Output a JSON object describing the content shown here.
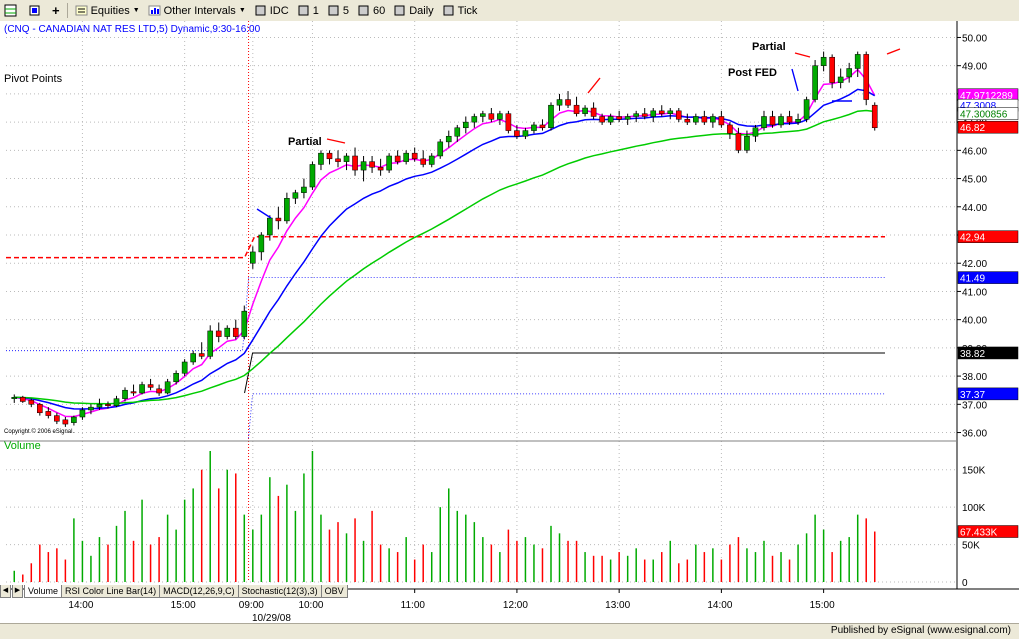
{
  "toolbar": {
    "items": [
      {
        "label": "Equities",
        "dropdown": true,
        "icon": "equities-icon"
      },
      {
        "label": "Other Intervals",
        "dropdown": true,
        "icon": "intervals-icon"
      },
      {
        "label": "IDC",
        "dropdown": false,
        "icon": "idc-icon"
      },
      {
        "label": "1",
        "dropdown": false
      },
      {
        "label": "5",
        "dropdown": false
      },
      {
        "label": "60",
        "dropdown": false
      },
      {
        "label": "Daily",
        "dropdown": false
      },
      {
        "label": "Tick",
        "dropdown": false
      }
    ]
  },
  "chart_header": "(CNQ - CANADIAN NAT RES LTD,5) Dynamic,9:30-16:00",
  "study_label": "Pivot Points",
  "copyright": "Copyright © 2006 eSignal.",
  "volume_label": "Volume",
  "tabs": [
    "Volume",
    "RSI Color Line Bar(14)",
    "MACD(12,26,9,C)",
    "Stochastic(12(3),3)",
    "OBV"
  ],
  "date_label": "10/29/08",
  "footer": "Published by eSignal (www.esignal.com)",
  "annotations": [
    {
      "text": "Partial",
      "near": "10:00",
      "color": "#000000"
    },
    {
      "text": "Partial",
      "near": "15:00",
      "color": "#000000"
    },
    {
      "text": "Post FED",
      "near": "14:30",
      "color": "#000000"
    }
  ],
  "price_tags": [
    {
      "label": "47.9712289",
      "bg": "#ff00ff",
      "fg": "#ffffff",
      "value": 47.97
    },
    {
      "label": "47.3008",
      "bg": "#ffffff",
      "fg": "#0000ff",
      "value": 47.6
    },
    {
      "label": "47.300856",
      "bg": "#ffffff",
      "fg": "#008000",
      "value": 47.3
    },
    {
      "label": "46.82",
      "bg": "#ff0000",
      "fg": "#ffffff",
      "value": 46.82
    },
    {
      "label": "42.94",
      "bg": "#ff0000",
      "fg": "#ffffff",
      "value": 42.94
    },
    {
      "label": "41.49",
      "bg": "#0000ff",
      "fg": "#ffffff",
      "value": 41.49
    },
    {
      "label": "38.82",
      "bg": "#000000",
      "fg": "#ffffff",
      "value": 38.82
    },
    {
      "label": "37.37",
      "bg": "#0000ff",
      "fg": "#ffffff",
      "value": 37.37
    },
    {
      "label": "67.433K",
      "bg": "#ff0000",
      "fg": "#ffffff",
      "value": 67433
    }
  ],
  "colors": {
    "up": "#00aa00",
    "down": "#ff0000",
    "ma_fast": "#ff00ff",
    "ma_mid": "#0000ff",
    "ma_slow": "#00cc00",
    "pivot_r1": "#ff0000",
    "pivot_s": "#0000ff",
    "pivot_p": "#000000",
    "volume_label": "#00aa00",
    "header": "#0000ff"
  },
  "chart_data": {
    "type": "candlestick",
    "price_axis": {
      "ticks": [
        "50.00",
        "49.00",
        "48.00",
        "47.00",
        "46.00",
        "45.00",
        "44.00",
        "43.00",
        "42.00",
        "41.00",
        "40.00",
        "39.00",
        "38.00",
        "37.00",
        "36.00"
      ],
      "min": 35.7,
      "max": 50.3
    },
    "volume_axis": {
      "ticks": [
        "150K",
        "100K",
        "50K",
        "0"
      ],
      "max": 175000
    },
    "time_axis": [
      "14:00",
      "15:00",
      "09:00",
      "10:00",
      "11:00",
      "12:00",
      "13:00",
      "14:00",
      "15:00"
    ],
    "candles": [
      {
        "o": 37.2,
        "h": 37.35,
        "l": 37.05,
        "c": 37.25,
        "v": 15000
      },
      {
        "o": 37.25,
        "h": 37.3,
        "l": 37.05,
        "c": 37.1,
        "v": 10000
      },
      {
        "o": 37.15,
        "h": 37.2,
        "l": 36.9,
        "c": 37.0,
        "v": 25000
      },
      {
        "o": 37.0,
        "h": 37.05,
        "l": 36.6,
        "c": 36.7,
        "v": 50000
      },
      {
        "o": 36.75,
        "h": 36.9,
        "l": 36.5,
        "c": 36.6,
        "v": 40000
      },
      {
        "o": 36.6,
        "h": 36.7,
        "l": 36.3,
        "c": 36.4,
        "v": 45000
      },
      {
        "o": 36.45,
        "h": 36.55,
        "l": 36.2,
        "c": 36.3,
        "v": 30000
      },
      {
        "o": 36.35,
        "h": 36.6,
        "l": 36.25,
        "c": 36.55,
        "v": 85000
      },
      {
        "o": 36.55,
        "h": 36.9,
        "l": 36.45,
        "c": 36.8,
        "v": 55000
      },
      {
        "o": 36.8,
        "h": 37.0,
        "l": 36.65,
        "c": 36.9,
        "v": 35000
      },
      {
        "o": 36.9,
        "h": 37.2,
        "l": 36.8,
        "c": 37.0,
        "v": 60000
      },
      {
        "o": 37.0,
        "h": 37.1,
        "l": 36.85,
        "c": 36.95,
        "v": 50000
      },
      {
        "o": 36.95,
        "h": 37.3,
        "l": 36.9,
        "c": 37.2,
        "v": 75000
      },
      {
        "o": 37.2,
        "h": 37.6,
        "l": 37.1,
        "c": 37.5,
        "v": 95000
      },
      {
        "o": 37.45,
        "h": 37.7,
        "l": 37.3,
        "c": 37.4,
        "v": 55000
      },
      {
        "o": 37.4,
        "h": 37.8,
        "l": 37.35,
        "c": 37.7,
        "v": 110000
      },
      {
        "o": 37.7,
        "h": 37.9,
        "l": 37.5,
        "c": 37.6,
        "v": 50000
      },
      {
        "o": 37.55,
        "h": 37.7,
        "l": 37.3,
        "c": 37.4,
        "v": 60000
      },
      {
        "o": 37.4,
        "h": 37.9,
        "l": 37.35,
        "c": 37.8,
        "v": 90000
      },
      {
        "o": 37.8,
        "h": 38.2,
        "l": 37.7,
        "c": 38.1,
        "v": 70000
      },
      {
        "o": 38.1,
        "h": 38.6,
        "l": 38.0,
        "c": 38.5,
        "v": 110000
      },
      {
        "o": 38.5,
        "h": 38.9,
        "l": 38.4,
        "c": 38.8,
        "v": 125000
      },
      {
        "o": 38.8,
        "h": 39.2,
        "l": 38.6,
        "c": 38.7,
        "v": 150000
      },
      {
        "o": 38.7,
        "h": 39.8,
        "l": 38.6,
        "c": 39.6,
        "v": 175000
      },
      {
        "o": 39.6,
        "h": 39.9,
        "l": 39.2,
        "c": 39.4,
        "v": 125000
      },
      {
        "o": 39.4,
        "h": 39.8,
        "l": 39.3,
        "c": 39.7,
        "v": 150000
      },
      {
        "o": 39.7,
        "h": 40.0,
        "l": 39.3,
        "c": 39.4,
        "v": 145000
      },
      {
        "o": 39.4,
        "h": 40.5,
        "l": 39.3,
        "c": 40.3,
        "v": 90000
      },
      {
        "o": 42.0,
        "h": 42.6,
        "l": 41.8,
        "c": 42.4,
        "v": 70000
      },
      {
        "o": 42.4,
        "h": 43.1,
        "l": 42.1,
        "c": 43.0,
        "v": 90000
      },
      {
        "o": 43.0,
        "h": 43.7,
        "l": 42.8,
        "c": 43.6,
        "v": 140000
      },
      {
        "o": 43.6,
        "h": 44.0,
        "l": 43.2,
        "c": 43.5,
        "v": 115000
      },
      {
        "o": 43.5,
        "h": 44.5,
        "l": 43.4,
        "c": 44.3,
        "v": 130000
      },
      {
        "o": 44.3,
        "h": 44.6,
        "l": 44.1,
        "c": 44.5,
        "v": 95000
      },
      {
        "o": 44.5,
        "h": 45.0,
        "l": 44.3,
        "c": 44.7,
        "v": 145000
      },
      {
        "o": 44.7,
        "h": 45.6,
        "l": 44.6,
        "c": 45.5,
        "v": 175000
      },
      {
        "o": 45.5,
        "h": 46.0,
        "l": 45.3,
        "c": 45.9,
        "v": 90000
      },
      {
        "o": 45.9,
        "h": 46.0,
        "l": 45.5,
        "c": 45.7,
        "v": 70000
      },
      {
        "o": 45.7,
        "h": 46.0,
        "l": 45.4,
        "c": 45.6,
        "v": 80000
      },
      {
        "o": 45.6,
        "h": 45.9,
        "l": 45.3,
        "c": 45.8,
        "v": 65000
      },
      {
        "o": 45.8,
        "h": 46.1,
        "l": 45.1,
        "c": 45.3,
        "v": 85000
      },
      {
        "o": 45.3,
        "h": 45.8,
        "l": 44.9,
        "c": 45.6,
        "v": 55000
      },
      {
        "o": 45.6,
        "h": 45.8,
        "l": 45.2,
        "c": 45.4,
        "v": 95000
      },
      {
        "o": 45.4,
        "h": 45.7,
        "l": 45.1,
        "c": 45.3,
        "v": 50000
      },
      {
        "o": 45.3,
        "h": 45.9,
        "l": 45.2,
        "c": 45.8,
        "v": 45000
      },
      {
        "o": 45.8,
        "h": 46.0,
        "l": 45.5,
        "c": 45.6,
        "v": 40000
      },
      {
        "o": 45.6,
        "h": 46.0,
        "l": 45.5,
        "c": 45.9,
        "v": 60000
      },
      {
        "o": 45.9,
        "h": 46.1,
        "l": 45.6,
        "c": 45.7,
        "v": 30000
      },
      {
        "o": 45.7,
        "h": 46.0,
        "l": 45.4,
        "c": 45.5,
        "v": 50000
      },
      {
        "o": 45.5,
        "h": 45.9,
        "l": 45.4,
        "c": 45.8,
        "v": 40000
      },
      {
        "o": 45.8,
        "h": 46.4,
        "l": 45.7,
        "c": 46.3,
        "v": 100000
      },
      {
        "o": 46.3,
        "h": 46.7,
        "l": 46.1,
        "c": 46.5,
        "v": 125000
      },
      {
        "o": 46.5,
        "h": 46.9,
        "l": 46.3,
        "c": 46.8,
        "v": 95000
      },
      {
        "o": 46.8,
        "h": 47.2,
        "l": 46.6,
        "c": 47.0,
        "v": 90000
      },
      {
        "o": 47.0,
        "h": 47.3,
        "l": 46.8,
        "c": 47.2,
        "v": 80000
      },
      {
        "o": 47.2,
        "h": 47.4,
        "l": 47.0,
        "c": 47.3,
        "v": 60000
      },
      {
        "o": 47.3,
        "h": 47.5,
        "l": 47.0,
        "c": 47.1,
        "v": 50000
      },
      {
        "o": 47.1,
        "h": 47.4,
        "l": 46.9,
        "c": 47.3,
        "v": 40000
      },
      {
        "o": 47.3,
        "h": 47.4,
        "l": 46.6,
        "c": 46.7,
        "v": 70000
      },
      {
        "o": 46.7,
        "h": 46.9,
        "l": 46.4,
        "c": 46.5,
        "v": 55000
      },
      {
        "o": 46.5,
        "h": 46.8,
        "l": 46.4,
        "c": 46.7,
        "v": 60000
      },
      {
        "o": 46.7,
        "h": 47.0,
        "l": 46.6,
        "c": 46.9,
        "v": 50000
      },
      {
        "o": 46.9,
        "h": 47.1,
        "l": 46.7,
        "c": 46.8,
        "v": 45000
      },
      {
        "o": 46.8,
        "h": 47.7,
        "l": 46.7,
        "c": 47.6,
        "v": 75000
      },
      {
        "o": 47.6,
        "h": 48.0,
        "l": 47.4,
        "c": 47.8,
        "v": 65000
      },
      {
        "o": 47.8,
        "h": 48.1,
        "l": 47.5,
        "c": 47.6,
        "v": 55000
      },
      {
        "o": 47.6,
        "h": 47.9,
        "l": 47.2,
        "c": 47.3,
        "v": 55000
      },
      {
        "o": 47.3,
        "h": 47.6,
        "l": 47.2,
        "c": 47.5,
        "v": 40000
      },
      {
        "o": 47.5,
        "h": 47.7,
        "l": 47.1,
        "c": 47.2,
        "v": 35000
      },
      {
        "o": 47.2,
        "h": 47.3,
        "l": 46.9,
        "c": 47.0,
        "v": 35000
      },
      {
        "o": 47.0,
        "h": 47.3,
        "l": 46.9,
        "c": 47.2,
        "v": 30000
      },
      {
        "o": 47.2,
        "h": 47.4,
        "l": 47.0,
        "c": 47.1,
        "v": 40000
      },
      {
        "o": 47.1,
        "h": 47.3,
        "l": 46.9,
        "c": 47.2,
        "v": 35000
      },
      {
        "o": 47.2,
        "h": 47.4,
        "l": 47.0,
        "c": 47.3,
        "v": 45000
      },
      {
        "o": 47.3,
        "h": 47.5,
        "l": 47.1,
        "c": 47.2,
        "v": 30000
      },
      {
        "o": 47.2,
        "h": 47.5,
        "l": 47.0,
        "c": 47.4,
        "v": 30000
      },
      {
        "o": 47.4,
        "h": 47.6,
        "l": 47.2,
        "c": 47.3,
        "v": 40000
      },
      {
        "o": 47.3,
        "h": 47.5,
        "l": 47.1,
        "c": 47.4,
        "v": 55000
      },
      {
        "o": 47.4,
        "h": 47.5,
        "l": 47.0,
        "c": 47.1,
        "v": 25000
      },
      {
        "o": 47.1,
        "h": 47.3,
        "l": 46.9,
        "c": 47.0,
        "v": 30000
      },
      {
        "o": 47.0,
        "h": 47.3,
        "l": 46.9,
        "c": 47.2,
        "v": 50000
      },
      {
        "o": 47.2,
        "h": 47.4,
        "l": 46.9,
        "c": 47.0,
        "v": 40000
      },
      {
        "o": 47.0,
        "h": 47.3,
        "l": 46.8,
        "c": 47.2,
        "v": 45000
      },
      {
        "o": 47.2,
        "h": 47.4,
        "l": 46.8,
        "c": 46.9,
        "v": 30000
      },
      {
        "o": 46.9,
        "h": 47.0,
        "l": 46.4,
        "c": 46.6,
        "v": 50000
      },
      {
        "o": 46.6,
        "h": 46.8,
        "l": 45.9,
        "c": 46.0,
        "v": 60000
      },
      {
        "o": 46.0,
        "h": 46.7,
        "l": 45.9,
        "c": 46.5,
        "v": 45000
      },
      {
        "o": 46.5,
        "h": 46.9,
        "l": 46.3,
        "c": 46.8,
        "v": 40000
      },
      {
        "o": 46.8,
        "h": 47.4,
        "l": 46.7,
        "c": 47.2,
        "v": 55000
      },
      {
        "o": 47.2,
        "h": 47.4,
        "l": 46.8,
        "c": 46.9,
        "v": 35000
      },
      {
        "o": 46.9,
        "h": 47.3,
        "l": 46.8,
        "c": 47.2,
        "v": 40000
      },
      {
        "o": 47.2,
        "h": 47.4,
        "l": 46.9,
        "c": 47.0,
        "v": 30000
      },
      {
        "o": 47.0,
        "h": 47.3,
        "l": 46.9,
        "c": 47.1,
        "v": 50000
      },
      {
        "o": 47.1,
        "h": 47.9,
        "l": 47.0,
        "c": 47.8,
        "v": 65000
      },
      {
        "o": 47.8,
        "h": 49.2,
        "l": 47.7,
        "c": 49.0,
        "v": 90000
      },
      {
        "o": 49.0,
        "h": 49.5,
        "l": 48.8,
        "c": 49.3,
        "v": 70000
      },
      {
        "o": 49.3,
        "h": 49.4,
        "l": 48.2,
        "c": 48.4,
        "v": 40000
      },
      {
        "o": 48.4,
        "h": 48.9,
        "l": 48.2,
        "c": 48.6,
        "v": 55000
      },
      {
        "o": 48.6,
        "h": 49.1,
        "l": 48.4,
        "c": 48.9,
        "v": 60000
      },
      {
        "o": 48.9,
        "h": 49.5,
        "l": 48.6,
        "c": 49.4,
        "v": 90000
      },
      {
        "o": 49.4,
        "h": 49.5,
        "l": 47.6,
        "c": 47.8,
        "v": 85000
      },
      {
        "o": 47.6,
        "h": 47.7,
        "l": 46.7,
        "c": 46.8,
        "v": 67433
      }
    ],
    "pivots": {
      "r1": 42.94,
      "p": 38.82,
      "s1_upper": 41.49,
      "s1_lower": 37.37,
      "prior_r1": 42.2,
      "prior_s": 38.9
    }
  }
}
